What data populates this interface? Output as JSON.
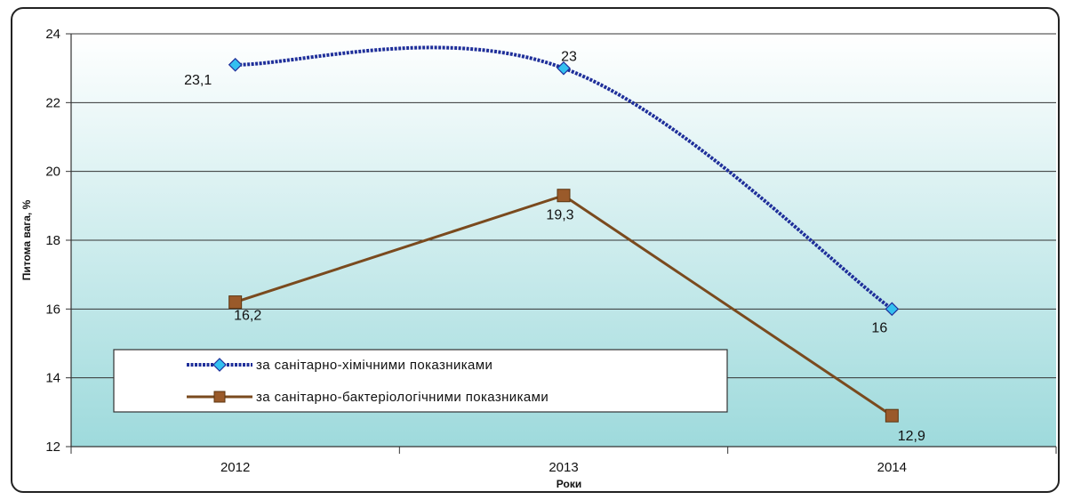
{
  "chart_data": {
    "type": "line",
    "categories": [
      "2012",
      "2013",
      "2014"
    ],
    "xlabel": "Роки",
    "ylabel": "Питома вага, %",
    "ylim": [
      12,
      24
    ],
    "yticks": [
      "12",
      "14",
      "16",
      "18",
      "20",
      "22",
      "24"
    ],
    "grid": true,
    "legend_position": "bottom-left",
    "series": [
      {
        "name": "за санітарно-хімічними показниками",
        "values": [
          23.1,
          23,
          16
        ],
        "labels": [
          "23,1",
          "23",
          "16"
        ],
        "color": "#1f2f9a",
        "marker": "diamond",
        "marker_color": "#33c0f0",
        "smooth": true
      },
      {
        "name": "за санітарно-бактеріологічними показниками",
        "values": [
          16.2,
          19.3,
          12.9
        ],
        "labels": [
          "16,2",
          "19,3",
          "12,9"
        ],
        "color": "#7a4a1e",
        "marker": "square",
        "marker_color": "#9a5a2a",
        "smooth": false
      }
    ],
    "background_gradient": [
      "#ffffff",
      "#9edadc"
    ]
  }
}
